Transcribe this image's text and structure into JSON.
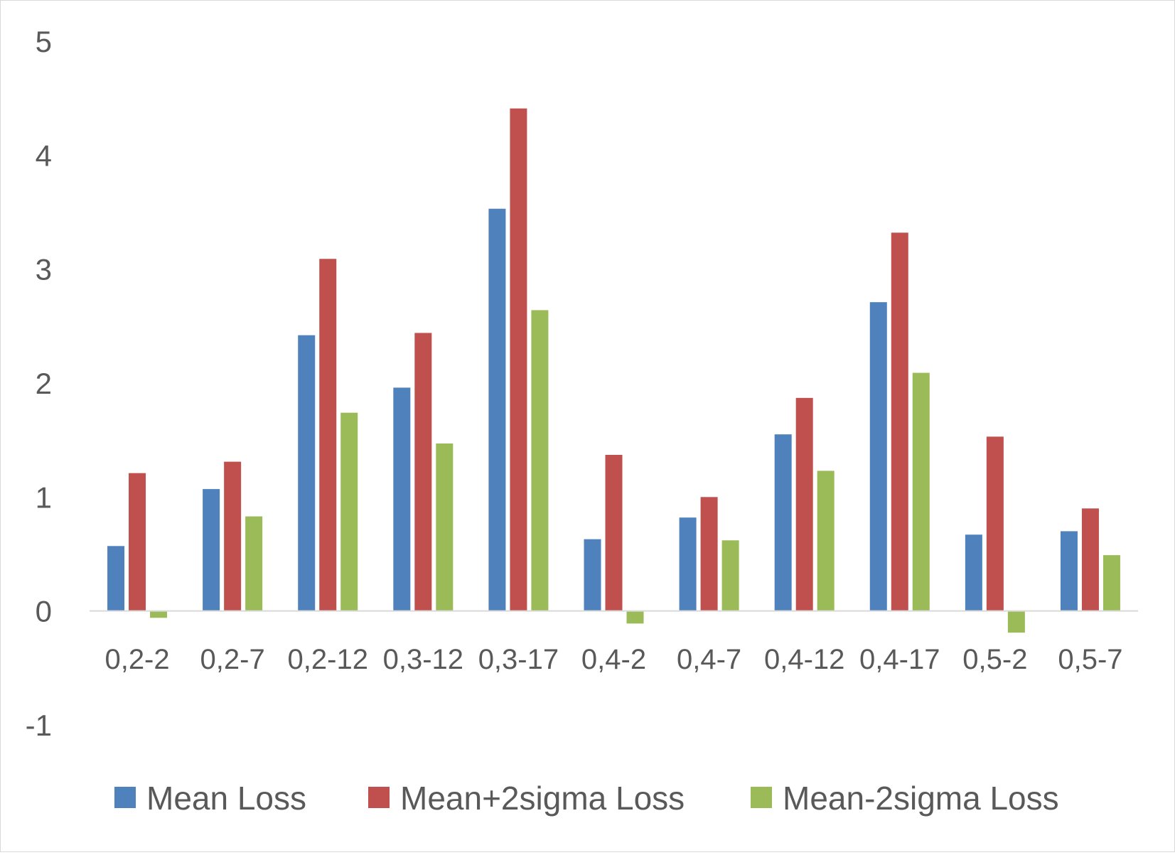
{
  "chart_data": {
    "type": "bar",
    "title": "",
    "xlabel": "",
    "ylabel": "",
    "categories": [
      "0,2-2",
      "0,2-7",
      "0,2-12",
      "0,3-12",
      "0,3-17",
      "0,4-2",
      "0,4-7",
      "0,4-12",
      "0,4-17",
      "0,5-2",
      "0,5-7"
    ],
    "series": [
      {
        "name": "Mean Loss",
        "color": "#4F81BD",
        "values": [
          0.57,
          1.07,
          2.42,
          1.96,
          3.53,
          0.63,
          0.82,
          1.55,
          2.71,
          0.67,
          0.7
        ]
      },
      {
        "name": "Mean+2sigma Loss",
        "color": "#C0504D",
        "values": [
          1.21,
          1.31,
          3.09,
          2.44,
          4.41,
          1.37,
          1.0,
          1.87,
          3.32,
          1.53,
          0.9
        ]
      },
      {
        "name": "Mean-2sigma Loss",
        "color": "#9BBB59",
        "values": [
          -0.06,
          0.83,
          1.74,
          1.47,
          2.64,
          -0.11,
          0.62,
          1.23,
          2.09,
          -0.19,
          0.49
        ]
      }
    ],
    "ylim": [
      -1,
      5
    ],
    "yticks": [
      -1,
      0,
      1,
      2,
      3,
      4,
      5
    ],
    "grid": false,
    "legend": "bottom"
  }
}
